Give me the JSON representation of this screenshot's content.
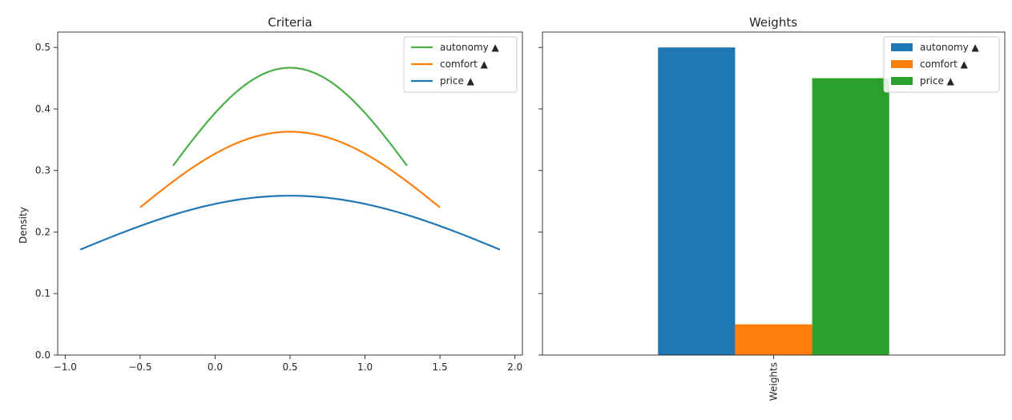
{
  "chart_data": [
    {
      "type": "line",
      "title": "Criteria",
      "xlabel": "",
      "ylabel": "Density",
      "xlim": [
        -1.05,
        2.05
      ],
      "ylim": [
        0,
        0.525
      ],
      "xticks": [
        -1.0,
        -0.5,
        0.0,
        0.5,
        1.0,
        1.5,
        2.0
      ],
      "xtick_labels": [
        "−1.0",
        "−0.5",
        "0.0",
        "0.5",
        "1.0",
        "1.5",
        "2.0"
      ],
      "yticks": [
        0.0,
        0.1,
        0.2,
        0.3,
        0.4,
        0.5
      ],
      "ytick_labels": [
        "0.0",
        "0.1",
        "0.2",
        "0.3",
        "0.4",
        "0.5"
      ],
      "grid": false,
      "legend": "top-right",
      "series": [
        {
          "name": "autonomy ▲",
          "color": "#4daf4a",
          "distribution": "normal",
          "mean": 0.5,
          "peak": 0.467,
          "x_range": [
            -0.28,
            1.28
          ]
        },
        {
          "name": "comfort ▲",
          "color": "#ff7f0e",
          "distribution": "normal",
          "mean": 0.5,
          "peak": 0.363,
          "x_range": [
            -0.5,
            1.5
          ]
        },
        {
          "name": "price ▲",
          "color": "#1f77b4",
          "distribution": "normal",
          "mean": 0.5,
          "peak": 0.259,
          "x_range": [
            -0.9,
            1.9
          ]
        }
      ]
    },
    {
      "type": "bar",
      "title": "Weights",
      "categories": [
        "Weights"
      ],
      "xlabel": "",
      "ylabel": "",
      "ylim": [
        0,
        0.525
      ],
      "grid": false,
      "legend": "top-right",
      "series": [
        {
          "name": "autonomy ▲",
          "color": "#1f77b4",
          "values": [
            0.5
          ]
        },
        {
          "name": "comfort ▲",
          "color": "#ff7f0e",
          "values": [
            0.05
          ]
        },
        {
          "name": "price ▲",
          "color": "#2ca02c",
          "values": [
            0.45
          ]
        }
      ]
    }
  ]
}
